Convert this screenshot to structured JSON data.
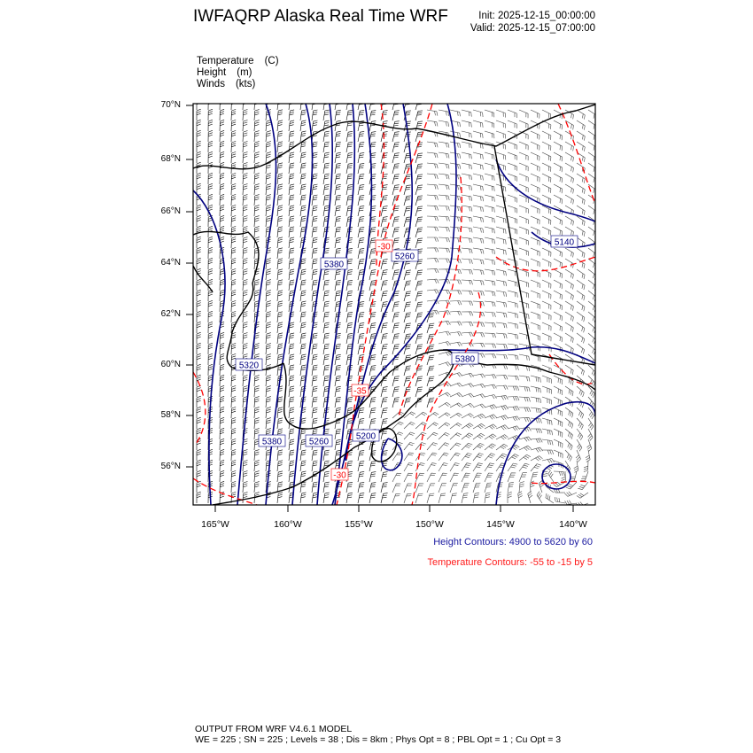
{
  "header": {
    "title": "IWFAQRP Alaska Real Time WRF",
    "init": "Init: 2025-12-15_00:00:00",
    "valid": "Valid: 2025-12-15_07:00:00"
  },
  "fields": [
    {
      "name": "Temperature",
      "unit": "(C)"
    },
    {
      "name": "Height",
      "unit": "(m)"
    },
    {
      "name": "Winds",
      "unit": "(kts)"
    }
  ],
  "map": {
    "lat_ticks": [
      "70°N",
      "68°N",
      "66°N",
      "64°N",
      "62°N",
      "60°N",
      "58°N",
      "56°N"
    ],
    "lon_ticks": [
      "165°W",
      "160°W",
      "155°W",
      "150°W",
      "145°W",
      "140°W"
    ],
    "height_labels": [
      "5380",
      "5260",
      "5140",
      "5320",
      "5380",
      "5260",
      "5200",
      "5380"
    ],
    "temp_labels": [
      "-30",
      "-35",
      "-30"
    ],
    "colors": {
      "height": "#000080",
      "temperature": "#ff0000",
      "coast": "#000000",
      "barbs_west": "#000000",
      "barbs_east": "#444444"
    }
  },
  "legend": {
    "height_contours": "Height Contours: 4900 to 5620 by 60",
    "temperature_contours": "Temperature Contours: -55 to -15 by 5"
  },
  "footer": {
    "line1": "OUTPUT FROM WRF V4.6.1 MODEL",
    "line2": "WE = 225 ; SN = 225 ; Levels = 38 ; Dis = 8km ; Phys Opt = 8 ; PBL Opt = 1 ; Cu Opt = 3"
  }
}
